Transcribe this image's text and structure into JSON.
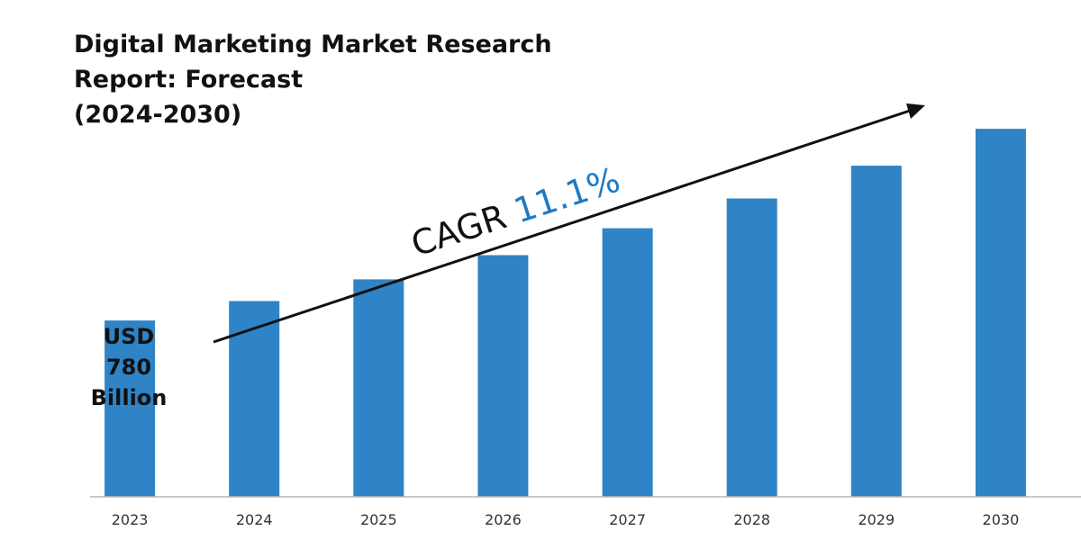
{
  "title_lines": [
    "Digital Marketing Market Research",
    "Report: Forecast",
    "(2024-2030)"
  ],
  "cagr": {
    "label": "CAGR",
    "value": "11.1%"
  },
  "annotation_lines": [
    "USD",
    "780",
    "Billion"
  ],
  "colors": {
    "bar": "#2e84c6",
    "cagr_value": "#1f7ac4",
    "text": "#111111",
    "axis": "#b7b7b7"
  },
  "chart_data": {
    "type": "bar",
    "title": "Digital Marketing Market Research Report: Forecast (2024-2030)",
    "categories": [
      "2023",
      "2024",
      "2025",
      "2026",
      "2027",
      "2028",
      "2029",
      "2030"
    ],
    "values": [
      780,
      866,
      962,
      1069,
      1188,
      1320,
      1465,
      1628
    ],
    "value_unit": "USD Billion",
    "value_labels_shown": [
      "780",
      null,
      null,
      null,
      null,
      null,
      null,
      null
    ],
    "xlabel": "",
    "ylabel": "",
    "ylim": [
      0,
      1760
    ],
    "grid": false,
    "legend": "none",
    "annotations": [
      "CAGR 11.1%",
      "USD 780 Billion"
    ]
  }
}
